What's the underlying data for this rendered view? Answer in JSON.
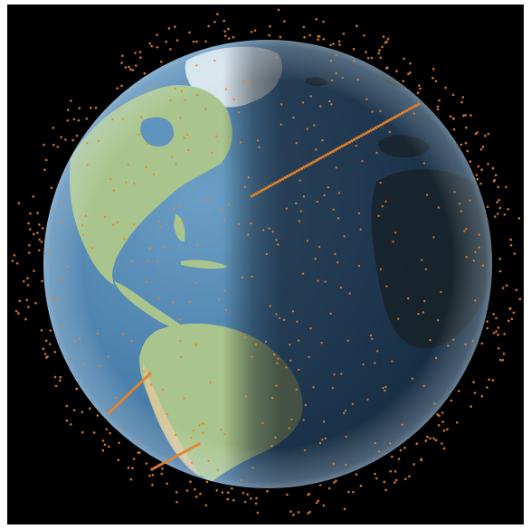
{
  "scene": {
    "subject": "globe-with-satellites",
    "background_color": "#000000",
    "colors": {
      "ocean_day": "#4f86b0",
      "ocean_night": "#1c3550",
      "land_day": "#a9c48d",
      "land_desert": "#d9c89a",
      "land_night": "#3a4a4a",
      "ice": "#e6eef2",
      "satellite": "#e8822a"
    },
    "terminator_side": "east",
    "satellite_trails": 3
  }
}
